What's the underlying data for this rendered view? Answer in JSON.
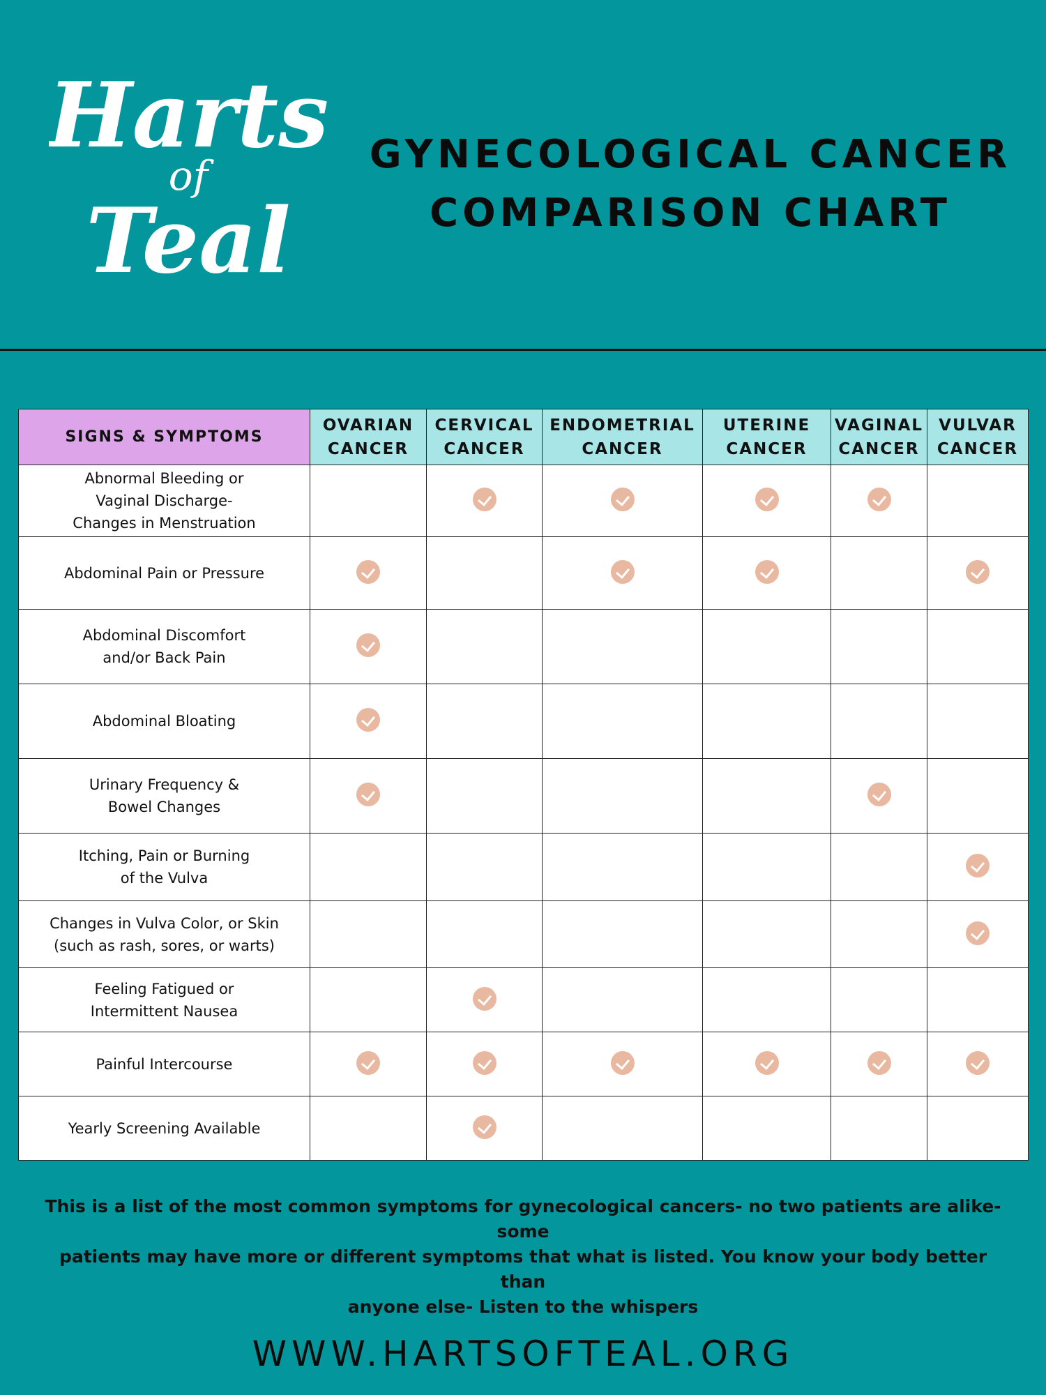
{
  "logo": {
    "line1": "Harts",
    "line2": "of",
    "line3": "Teal"
  },
  "title": {
    "line1": "GYNECOLOGICAL CANCER",
    "line2": "COMPARISON CHART"
  },
  "table": {
    "header": {
      "symptom": "SIGNS & SYMPTOMS",
      "cols": [
        {
          "l1": "OVARIAN",
          "l2": "CANCER"
        },
        {
          "l1": "CERVICAL",
          "l2": "CANCER"
        },
        {
          "l1": "ENDOMETRIAL",
          "l2": "CANCER"
        },
        {
          "l1": "UTERINE",
          "l2": "CANCER"
        },
        {
          "l1": "VAGINAL",
          "l2": "CANCER"
        },
        {
          "l1": "VULVAR",
          "l2": "CANCER"
        }
      ]
    },
    "rows": [
      {
        "label": [
          "Abnormal Bleeding or",
          "Vaginal Discharge-",
          "Changes in Menstruation"
        ],
        "checks": [
          false,
          true,
          true,
          true,
          true,
          false
        ]
      },
      {
        "label": [
          "Abdominal Pain or Pressure"
        ],
        "checks": [
          true,
          false,
          true,
          true,
          false,
          true
        ]
      },
      {
        "label": [
          "Abdominal Discomfort",
          "and/or Back Pain"
        ],
        "checks": [
          true,
          false,
          false,
          false,
          false,
          false
        ]
      },
      {
        "label": [
          "Abdominal Bloating"
        ],
        "checks": [
          true,
          false,
          false,
          false,
          false,
          false
        ]
      },
      {
        "label": [
          "Urinary Frequency &",
          "Bowel Changes"
        ],
        "checks": [
          true,
          false,
          false,
          false,
          true,
          false
        ]
      },
      {
        "label": [
          "Itching, Pain or Burning",
          "of the Vulva"
        ],
        "checks": [
          false,
          false,
          false,
          false,
          false,
          true
        ]
      },
      {
        "label": [
          "Changes in Vulva Color, or Skin",
          "(such as rash, sores, or warts)"
        ],
        "checks": [
          false,
          false,
          false,
          false,
          false,
          true
        ]
      },
      {
        "label": [
          "Feeling Fatigued or",
          "Intermittent Nausea"
        ],
        "checks": [
          false,
          true,
          false,
          false,
          false,
          false
        ]
      },
      {
        "label": [
          "Painful Intercourse"
        ],
        "checks": [
          true,
          true,
          true,
          true,
          true,
          true
        ]
      },
      {
        "label": [
          "Yearly Screening Available"
        ],
        "checks": [
          false,
          true,
          false,
          false,
          false,
          false
        ]
      }
    ]
  },
  "note": {
    "line1": "This is a list of the most common symptoms for gynecological cancers- no two patients are alike- some",
    "line2": "patients may have more or different symptoms that what is listed. You know your body better than",
    "line3": "anyone else- Listen to the whispers"
  },
  "website": "WWW.HARTSOFTEAL.ORG",
  "colors": {
    "background": "#03979d",
    "header_cols": "#a7e5e7",
    "header_symptom": "#dda4e9",
    "check": "#e8b8a0"
  }
}
